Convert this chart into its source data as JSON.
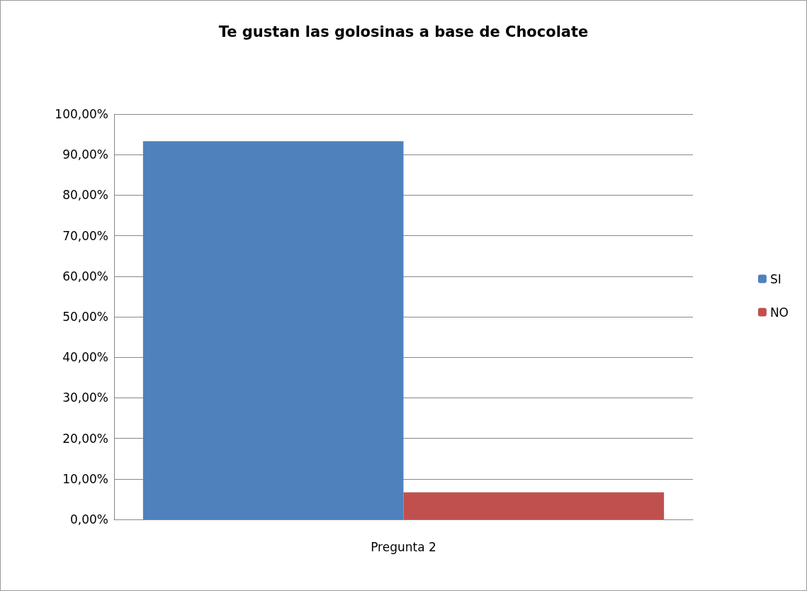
{
  "chart_data": {
    "type": "bar",
    "title": "Te gustan las golosinas a base de Chocolate",
    "categories": [
      "Pregunta 2"
    ],
    "series": [
      {
        "name": "SI",
        "color": "#4f81bd",
        "values": [
          93.3
        ]
      },
      {
        "name": "NO",
        "color": "#c0504d",
        "values": [
          6.7
        ]
      }
    ],
    "ylim": [
      0,
      100
    ],
    "yticks": [
      {
        "value": 0,
        "label": "0,00%"
      },
      {
        "value": 10,
        "label": "10,00%"
      },
      {
        "value": 20,
        "label": "20,00%"
      },
      {
        "value": 30,
        "label": "30,00%"
      },
      {
        "value": 40,
        "label": "40,00%"
      },
      {
        "value": 50,
        "label": "50,00%"
      },
      {
        "value": 60,
        "label": "60,00%"
      },
      {
        "value": 70,
        "label": "70,00%"
      },
      {
        "value": 80,
        "label": "80,00%"
      },
      {
        "value": 90,
        "label": "90,00%"
      },
      {
        "value": 100,
        "label": "100,00%"
      }
    ],
    "grid": "y",
    "legend": "right"
  }
}
